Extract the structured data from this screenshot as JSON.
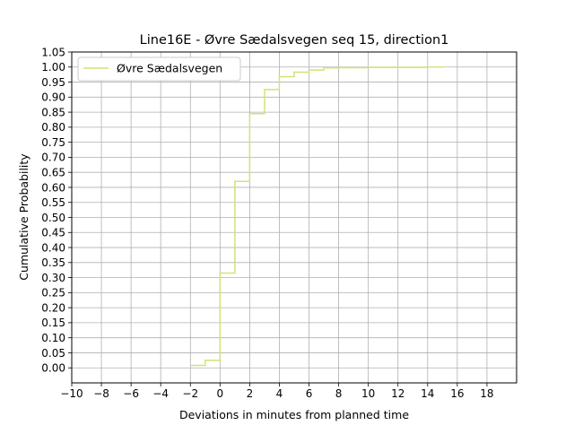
{
  "chart_data": {
    "type": "line",
    "step": "post",
    "title": "Line16E - Øvre Sædalsvegen seq 15, direction1",
    "xlabel": "Deviations in minutes from planned time",
    "ylabel": "Cumulative Probability",
    "xlim": [
      -10,
      20
    ],
    "ylim": [
      -0.05,
      1.05
    ],
    "xticks": [
      -10,
      -8,
      -6,
      -4,
      -2,
      0,
      2,
      4,
      6,
      8,
      10,
      12,
      14,
      16,
      18
    ],
    "yticks": [
      "0.00",
      "0.05",
      "0.10",
      "0.15",
      "0.20",
      "0.25",
      "0.30",
      "0.35",
      "0.40",
      "0.45",
      "0.50",
      "0.55",
      "0.60",
      "0.65",
      "0.70",
      "0.75",
      "0.80",
      "0.85",
      "0.90",
      "0.95",
      "1.00",
      "1.05"
    ],
    "grid": true,
    "legend": {
      "position": "top-left"
    },
    "series": [
      {
        "name": "Øvre Sædalsvegen",
        "color": "#d4e17a",
        "x": [
          -2,
          -1,
          0,
          1,
          2,
          3,
          4,
          5,
          6,
          7,
          8,
          9,
          10,
          11,
          12,
          13,
          14,
          15
        ],
        "y": [
          0.008,
          0.025,
          0.315,
          0.62,
          0.845,
          0.925,
          0.968,
          0.983,
          0.99,
          0.997,
          0.998,
          0.998,
          0.999,
          0.999,
          0.999,
          0.999,
          1.0,
          1.0
        ]
      }
    ]
  }
}
